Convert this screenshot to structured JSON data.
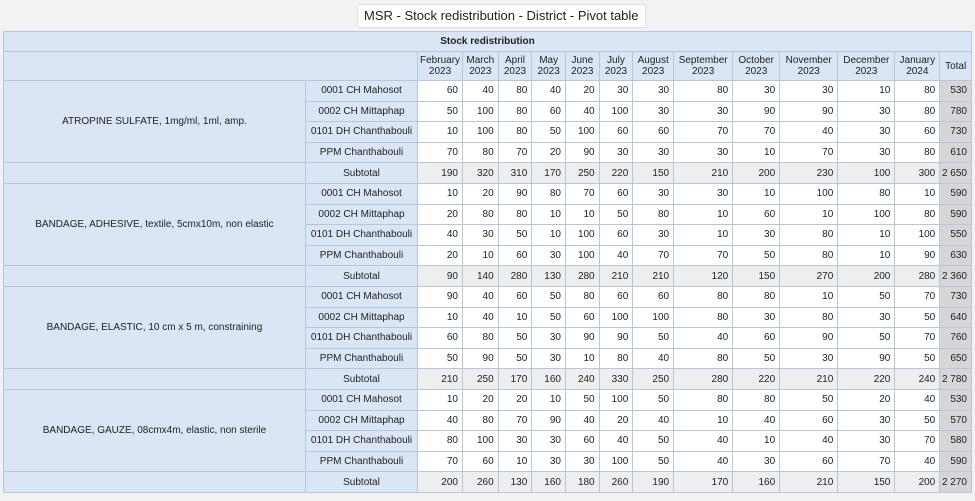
{
  "title": "MSR - Stock redistribution - District - Pivot table",
  "table_title": "Stock redistribution",
  "columns": [
    {
      "line1": "February",
      "line2": "2023"
    },
    {
      "line1": "March",
      "line2": "2023"
    },
    {
      "line1": "April",
      "line2": "2023"
    },
    {
      "line1": "May",
      "line2": "2023"
    },
    {
      "line1": "June",
      "line2": "2023"
    },
    {
      "line1": "July",
      "line2": "2023"
    },
    {
      "line1": "August",
      "line2": "2023"
    },
    {
      "line1": "September",
      "line2": "2023"
    },
    {
      "line1": "October",
      "line2": "2023"
    },
    {
      "line1": "November",
      "line2": "2023"
    },
    {
      "line1": "December",
      "line2": "2023"
    },
    {
      "line1": "January",
      "line2": "2024"
    }
  ],
  "total_label": "Total",
  "subtotal_label": "Subtotal",
  "groups": [
    {
      "product": "ATROPINE SULFATE, 1mg/ml, 1ml, amp.",
      "rows": [
        {
          "site": "0001 CH Mahosot",
          "values": [
            "60",
            "40",
            "80",
            "40",
            "20",
            "30",
            "30",
            "80",
            "30",
            "30",
            "10",
            "80"
          ],
          "total": "530"
        },
        {
          "site": "0002 CH Mittaphap",
          "values": [
            "50",
            "100",
            "80",
            "60",
            "40",
            "100",
            "30",
            "30",
            "90",
            "90",
            "30",
            "80"
          ],
          "total": "780"
        },
        {
          "site": "0101 DH Chanthabouli",
          "values": [
            "10",
            "100",
            "80",
            "50",
            "100",
            "60",
            "60",
            "70",
            "70",
            "40",
            "30",
            "60"
          ],
          "total": "730"
        },
        {
          "site": "PPM Chanthabouli",
          "values": [
            "70",
            "80",
            "70",
            "20",
            "90",
            "30",
            "30",
            "30",
            "10",
            "70",
            "30",
            "80"
          ],
          "total": "610"
        }
      ],
      "subtotal": {
        "values": [
          "190",
          "320",
          "310",
          "170",
          "250",
          "220",
          "150",
          "210",
          "200",
          "230",
          "100",
          "300"
        ],
        "total": "2 650"
      }
    },
    {
      "product": "BANDAGE, ADHESIVE, textile, 5cmx10m, non elastic",
      "rows": [
        {
          "site": "0001 CH Mahosot",
          "values": [
            "10",
            "20",
            "90",
            "80",
            "70",
            "60",
            "30",
            "30",
            "10",
            "100",
            "80",
            "10"
          ],
          "total": "590"
        },
        {
          "site": "0002 CH Mittaphap",
          "values": [
            "20",
            "80",
            "80",
            "10",
            "10",
            "50",
            "80",
            "10",
            "60",
            "10",
            "100",
            "80"
          ],
          "total": "590"
        },
        {
          "site": "0101 DH Chanthabouli",
          "values": [
            "40",
            "30",
            "50",
            "10",
            "100",
            "60",
            "30",
            "10",
            "30",
            "80",
            "10",
            "100"
          ],
          "total": "550"
        },
        {
          "site": "PPM Chanthabouli",
          "values": [
            "20",
            "10",
            "60",
            "30",
            "100",
            "40",
            "70",
            "70",
            "50",
            "80",
            "10",
            "90"
          ],
          "total": "630"
        }
      ],
      "subtotal": {
        "values": [
          "90",
          "140",
          "280",
          "130",
          "280",
          "210",
          "210",
          "120",
          "150",
          "270",
          "200",
          "280"
        ],
        "total": "2 360"
      }
    },
    {
      "product": "BANDAGE, ELASTIC, 10 cm x 5 m, constraining",
      "rows": [
        {
          "site": "0001 CH Mahosot",
          "values": [
            "90",
            "40",
            "60",
            "50",
            "80",
            "60",
            "60",
            "80",
            "80",
            "10",
            "50",
            "70"
          ],
          "total": "730"
        },
        {
          "site": "0002 CH Mittaphap",
          "values": [
            "10",
            "40",
            "10",
            "50",
            "60",
            "100",
            "100",
            "80",
            "30",
            "80",
            "30",
            "50"
          ],
          "total": "640"
        },
        {
          "site": "0101 DH Chanthabouli",
          "values": [
            "60",
            "80",
            "50",
            "30",
            "90",
            "90",
            "50",
            "40",
            "60",
            "90",
            "50",
            "70"
          ],
          "total": "760"
        },
        {
          "site": "PPM Chanthabouli",
          "values": [
            "50",
            "90",
            "50",
            "30",
            "10",
            "80",
            "40",
            "80",
            "50",
            "30",
            "90",
            "50"
          ],
          "total": "650"
        }
      ],
      "subtotal": {
        "values": [
          "210",
          "250",
          "170",
          "160",
          "240",
          "330",
          "250",
          "280",
          "220",
          "210",
          "220",
          "240"
        ],
        "total": "2 780"
      }
    },
    {
      "product": "BANDAGE, GAUZE, 08cmx4m, elastic, non sterile",
      "rows": [
        {
          "site": "0001 CH Mahosot",
          "values": [
            "10",
            "20",
            "20",
            "10",
            "50",
            "100",
            "50",
            "80",
            "80",
            "50",
            "20",
            "40"
          ],
          "total": "530"
        },
        {
          "site": "0002 CH Mittaphap",
          "values": [
            "40",
            "80",
            "70",
            "90",
            "40",
            "20",
            "40",
            "10",
            "40",
            "60",
            "30",
            "50"
          ],
          "total": "570"
        },
        {
          "site": "0101 DH Chanthabouli",
          "values": [
            "80",
            "100",
            "30",
            "30",
            "60",
            "40",
            "50",
            "40",
            "10",
            "40",
            "30",
            "70"
          ],
          "total": "580"
        },
        {
          "site": "PPM Chanthabouli",
          "values": [
            "70",
            "60",
            "10",
            "30",
            "30",
            "100",
            "50",
            "40",
            "30",
            "60",
            "70",
            "40"
          ],
          "total": "590"
        }
      ],
      "subtotal": {
        "values": [
          "200",
          "260",
          "130",
          "160",
          "180",
          "260",
          "190",
          "170",
          "160",
          "210",
          "150",
          "200"
        ],
        "total": "2 270"
      }
    }
  ]
}
